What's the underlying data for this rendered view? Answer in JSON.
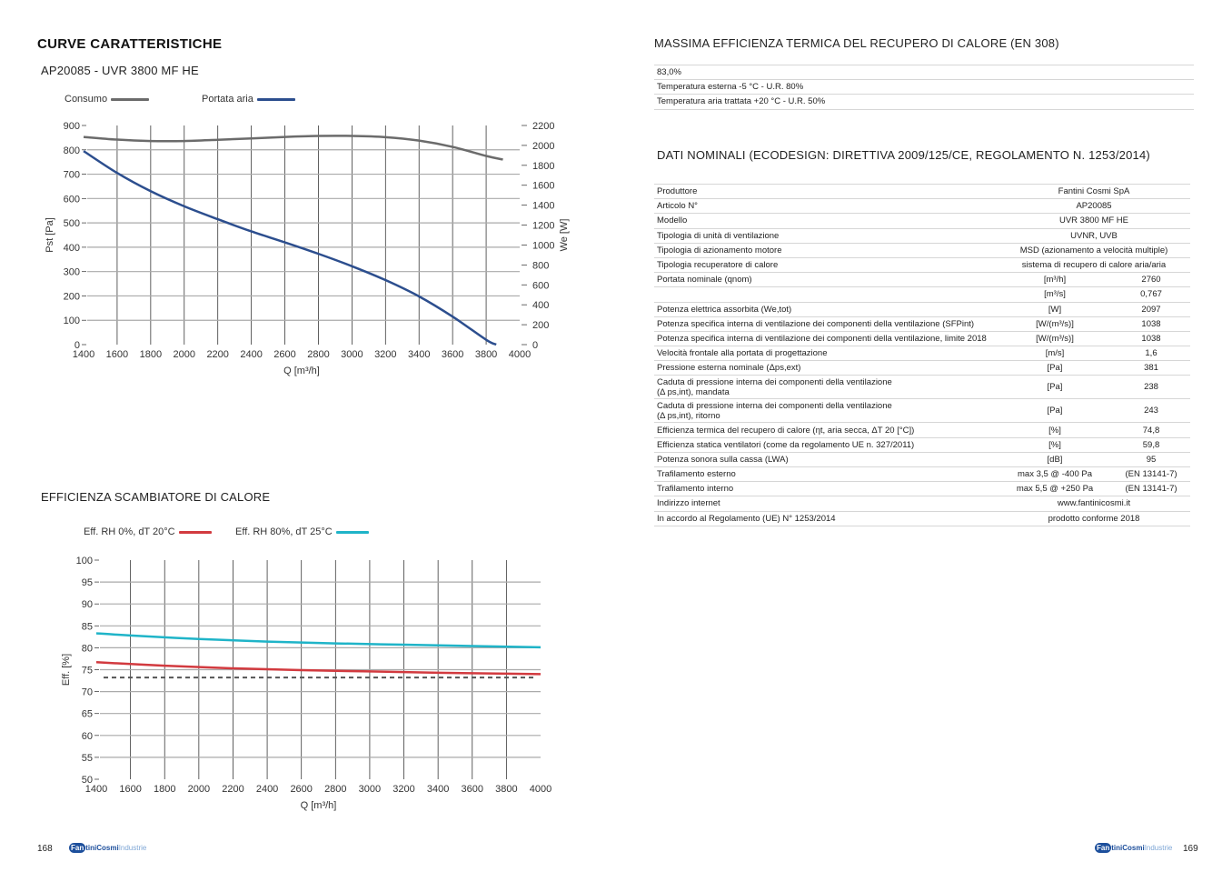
{
  "left_page": {
    "title": "CURVE CARATTERISTICHE",
    "subtitle": "AP20085 - UVR 3800 MF HE",
    "chart2_title": "EFFICIENZA SCAMBIATORE DI CALORE",
    "page_number": "168"
  },
  "right_page": {
    "section1_title": "MASSIMA EFFICIENZA TERMICA DEL RECUPERO DI CALORE (EN 308)",
    "section1_rows": [
      "83,0%",
      "Temperatura esterna -5 °C - U.R. 80%",
      "Temperatura aria trattata +20 °C - U.R. 50%"
    ],
    "section2_title": "DATI NOMINALI (ECODESIGN: DIRETTIVA 2009/125/CE, REGOLAMENTO N. 1253/2014)",
    "rows": [
      {
        "label": "Produttore",
        "value": "Fantini Cosmi SpA"
      },
      {
        "label": "Articolo N°",
        "value": "AP20085"
      },
      {
        "label": "Modello",
        "value": "UVR 3800 MF HE"
      },
      {
        "label": "Tipologia di unità di ventilazione",
        "value": "UVNR, UVB"
      },
      {
        "label": "Tipologia di azionamento motore",
        "value": "MSD (azionamento a velocità multiple)"
      },
      {
        "label": "Tipologia recuperatore di calore",
        "value": "sistema di recupero di calore aria/aria"
      },
      {
        "label": "Portata nominale (qnom)",
        "unit": "[m³/h]",
        "value": "2760"
      },
      {
        "label": "",
        "unit": "[m³/s]",
        "value": "0,767"
      },
      {
        "label": "Potenza elettrica assorbita (We,tot)",
        "unit": "[W]",
        "value": "2097"
      },
      {
        "label": "Potenza specifica interna di ventilazione dei componenti della ventilazione (SFPint)",
        "unit": "[W/(m³/s)]",
        "value": "1038"
      },
      {
        "label": "Potenza specifica interna di ventilazione dei componenti della ventilazione, limite 2018",
        "unit": "[W/(m³/s)]",
        "value": "1038"
      },
      {
        "label": "Velocità frontale alla portata di progettazione",
        "unit": "[m/s]",
        "value": "1,6"
      },
      {
        "label": "Pressione esterna nominale (Δps,ext)",
        "unit": "[Pa]",
        "value": "381"
      },
      {
        "label": "Caduta di pressione interna dei componenti della ventilazione",
        "label2": "(Δ ps,int), mandata",
        "unit": "[Pa]",
        "value": "238"
      },
      {
        "label": "Caduta di pressione interna dei componenti della ventilazione",
        "label2": "(Δ ps,int), ritorno",
        "unit": "[Pa]",
        "value": "243"
      },
      {
        "label": "Efficienza termica del recupero di calore (ηt, aria secca, ΔT 20 [°C])",
        "unit": "[%]",
        "value": "74,8"
      },
      {
        "label": "Efficienza statica ventilatori (come da regolamento UE n. 327/2011)",
        "unit": "[%]",
        "value": "59,8"
      },
      {
        "label": "Potenza sonora sulla cassa (LWA)",
        "unit": "[dB]",
        "value": "95"
      },
      {
        "label": "Trafilamento esterno",
        "unit": "max 3,5 @ -400 Pa",
        "value": "(EN 13141-7)"
      },
      {
        "label": "Trafilamento interno",
        "unit": "max 5,5 @ +250 Pa",
        "value": "(EN 13141-7)"
      },
      {
        "label": "Indirizzo internet",
        "value": "www.fantinicosmi.it"
      },
      {
        "label": "In accordo al Regolamento (UE) N° 1253/2014",
        "value": "prodotto conforme 2018"
      }
    ],
    "page_number": "169"
  },
  "logo": {
    "text": "FantiniCosmi Industrie",
    "part1": "Fan",
    "part2": "tiniCosmi",
    "part3": "Industrie"
  },
  "chart_data": [
    {
      "type": "line",
      "xlabel": "Q [m³/h]",
      "ylabel": "Pst [Pa]",
      "y2label": "We [W]",
      "xlim": [
        1400,
        4000
      ],
      "ylim": [
        0,
        900
      ],
      "y2lim": [
        0,
        2200
      ],
      "xticks": [
        1400,
        1600,
        1800,
        2000,
        2200,
        2400,
        2600,
        2800,
        3000,
        3200,
        3400,
        3600,
        3800,
        4000
      ],
      "yticks": [
        0,
        100,
        200,
        300,
        400,
        500,
        600,
        700,
        800,
        900
      ],
      "y2ticks": [
        0,
        200,
        400,
        600,
        800,
        1000,
        1200,
        1400,
        1600,
        1800,
        2000,
        2200
      ],
      "grid": true,
      "legend_position": "top-left",
      "series": [
        {
          "name": "Consumo",
          "axis": "right",
          "color": "#6b6b6b",
          "x": [
            1400,
            1600,
            1800,
            2000,
            2200,
            2400,
            2600,
            2800,
            3000,
            3200,
            3400,
            3600,
            3800,
            3900
          ],
          "y": [
            2085,
            2058,
            2044,
            2044,
            2056,
            2070,
            2085,
            2095,
            2095,
            2083,
            2048,
            1985,
            1894,
            1858
          ]
        },
        {
          "name": "Portata aria",
          "axis": "left",
          "color": "#2c4e8e",
          "x": [
            1400,
            1600,
            1800,
            2000,
            2200,
            2400,
            2600,
            2800,
            3000,
            3200,
            3400,
            3600,
            3800,
            3860
          ],
          "y": [
            795,
            705,
            630,
            568,
            515,
            465,
            420,
            373,
            322,
            265,
            198,
            115,
            20,
            0
          ]
        }
      ]
    },
    {
      "type": "line",
      "xlabel": "Q [m³/h]",
      "ylabel": "Eff. [%]",
      "xlim": [
        1400,
        4000
      ],
      "ylim": [
        50,
        100
      ],
      "xticks": [
        1400,
        1600,
        1800,
        2000,
        2200,
        2400,
        2600,
        2800,
        3000,
        3200,
        3400,
        3600,
        3800,
        4000
      ],
      "yticks": [
        50,
        55,
        60,
        65,
        70,
        75,
        80,
        85,
        90,
        95,
        100
      ],
      "grid": true,
      "legend_position": "top-left",
      "series": [
        {
          "name": "Eff. RH 0%, dT 20°C",
          "color": "#d23a3f",
          "x": [
            1400,
            1800,
            2200,
            2600,
            3000,
            3400,
            3800,
            4000
          ],
          "y": [
            76.7,
            75.9,
            75.3,
            74.9,
            74.6,
            74.3,
            74.1,
            74.0
          ]
        },
        {
          "name": "Eff. RH 80%, dT 25°C",
          "color": "#1fb4c8",
          "x": [
            1400,
            1600,
            2000,
            2400,
            2800,
            3200,
            3600,
            4000
          ],
          "y": [
            83.3,
            82.8,
            82.0,
            81.4,
            81.0,
            80.7,
            80.4,
            80.1
          ]
        }
      ],
      "reference_line": {
        "y": 73.2,
        "style": "dashed",
        "color": "#555555"
      }
    }
  ]
}
